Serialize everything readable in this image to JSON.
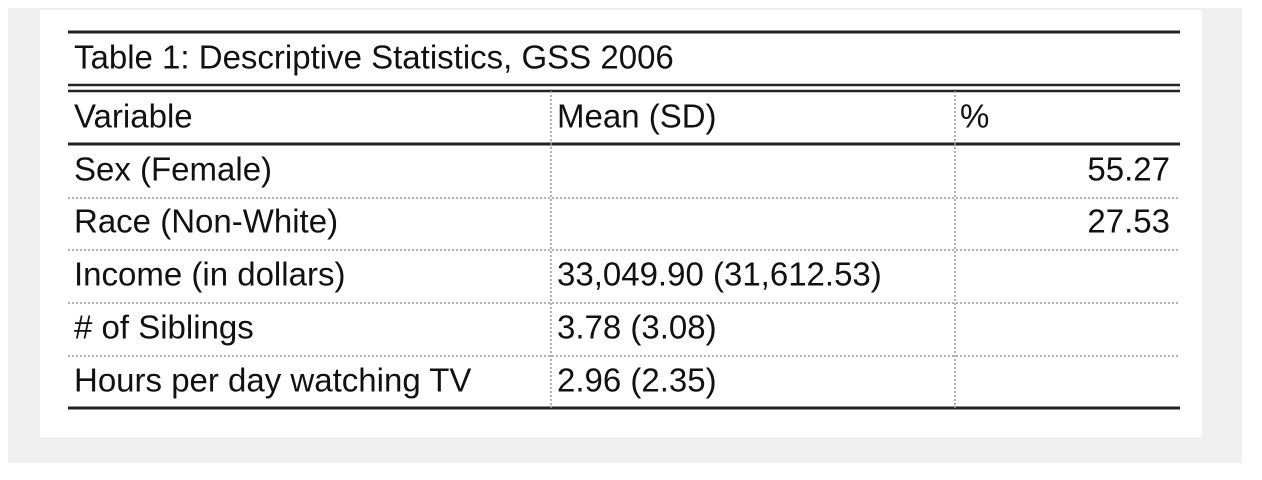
{
  "table": {
    "title": "Table 1: Descriptive Statistics, GSS 2006",
    "header": [
      "Variable",
      "Mean (SD)",
      "%"
    ],
    "rows": [
      [
        "Sex (Female)",
        null,
        "55.27"
      ],
      [
        "Race (Non-White)",
        null,
        "27.53"
      ],
      [
        "Income (in dollars)",
        "33,049.90 (31,612.53)",
        null
      ],
      [
        "# of Siblings",
        "3.78 (3.08)",
        null
      ],
      [
        "Hours per day watching TV",
        "2.96 (2.35)",
        null
      ]
    ]
  }
}
